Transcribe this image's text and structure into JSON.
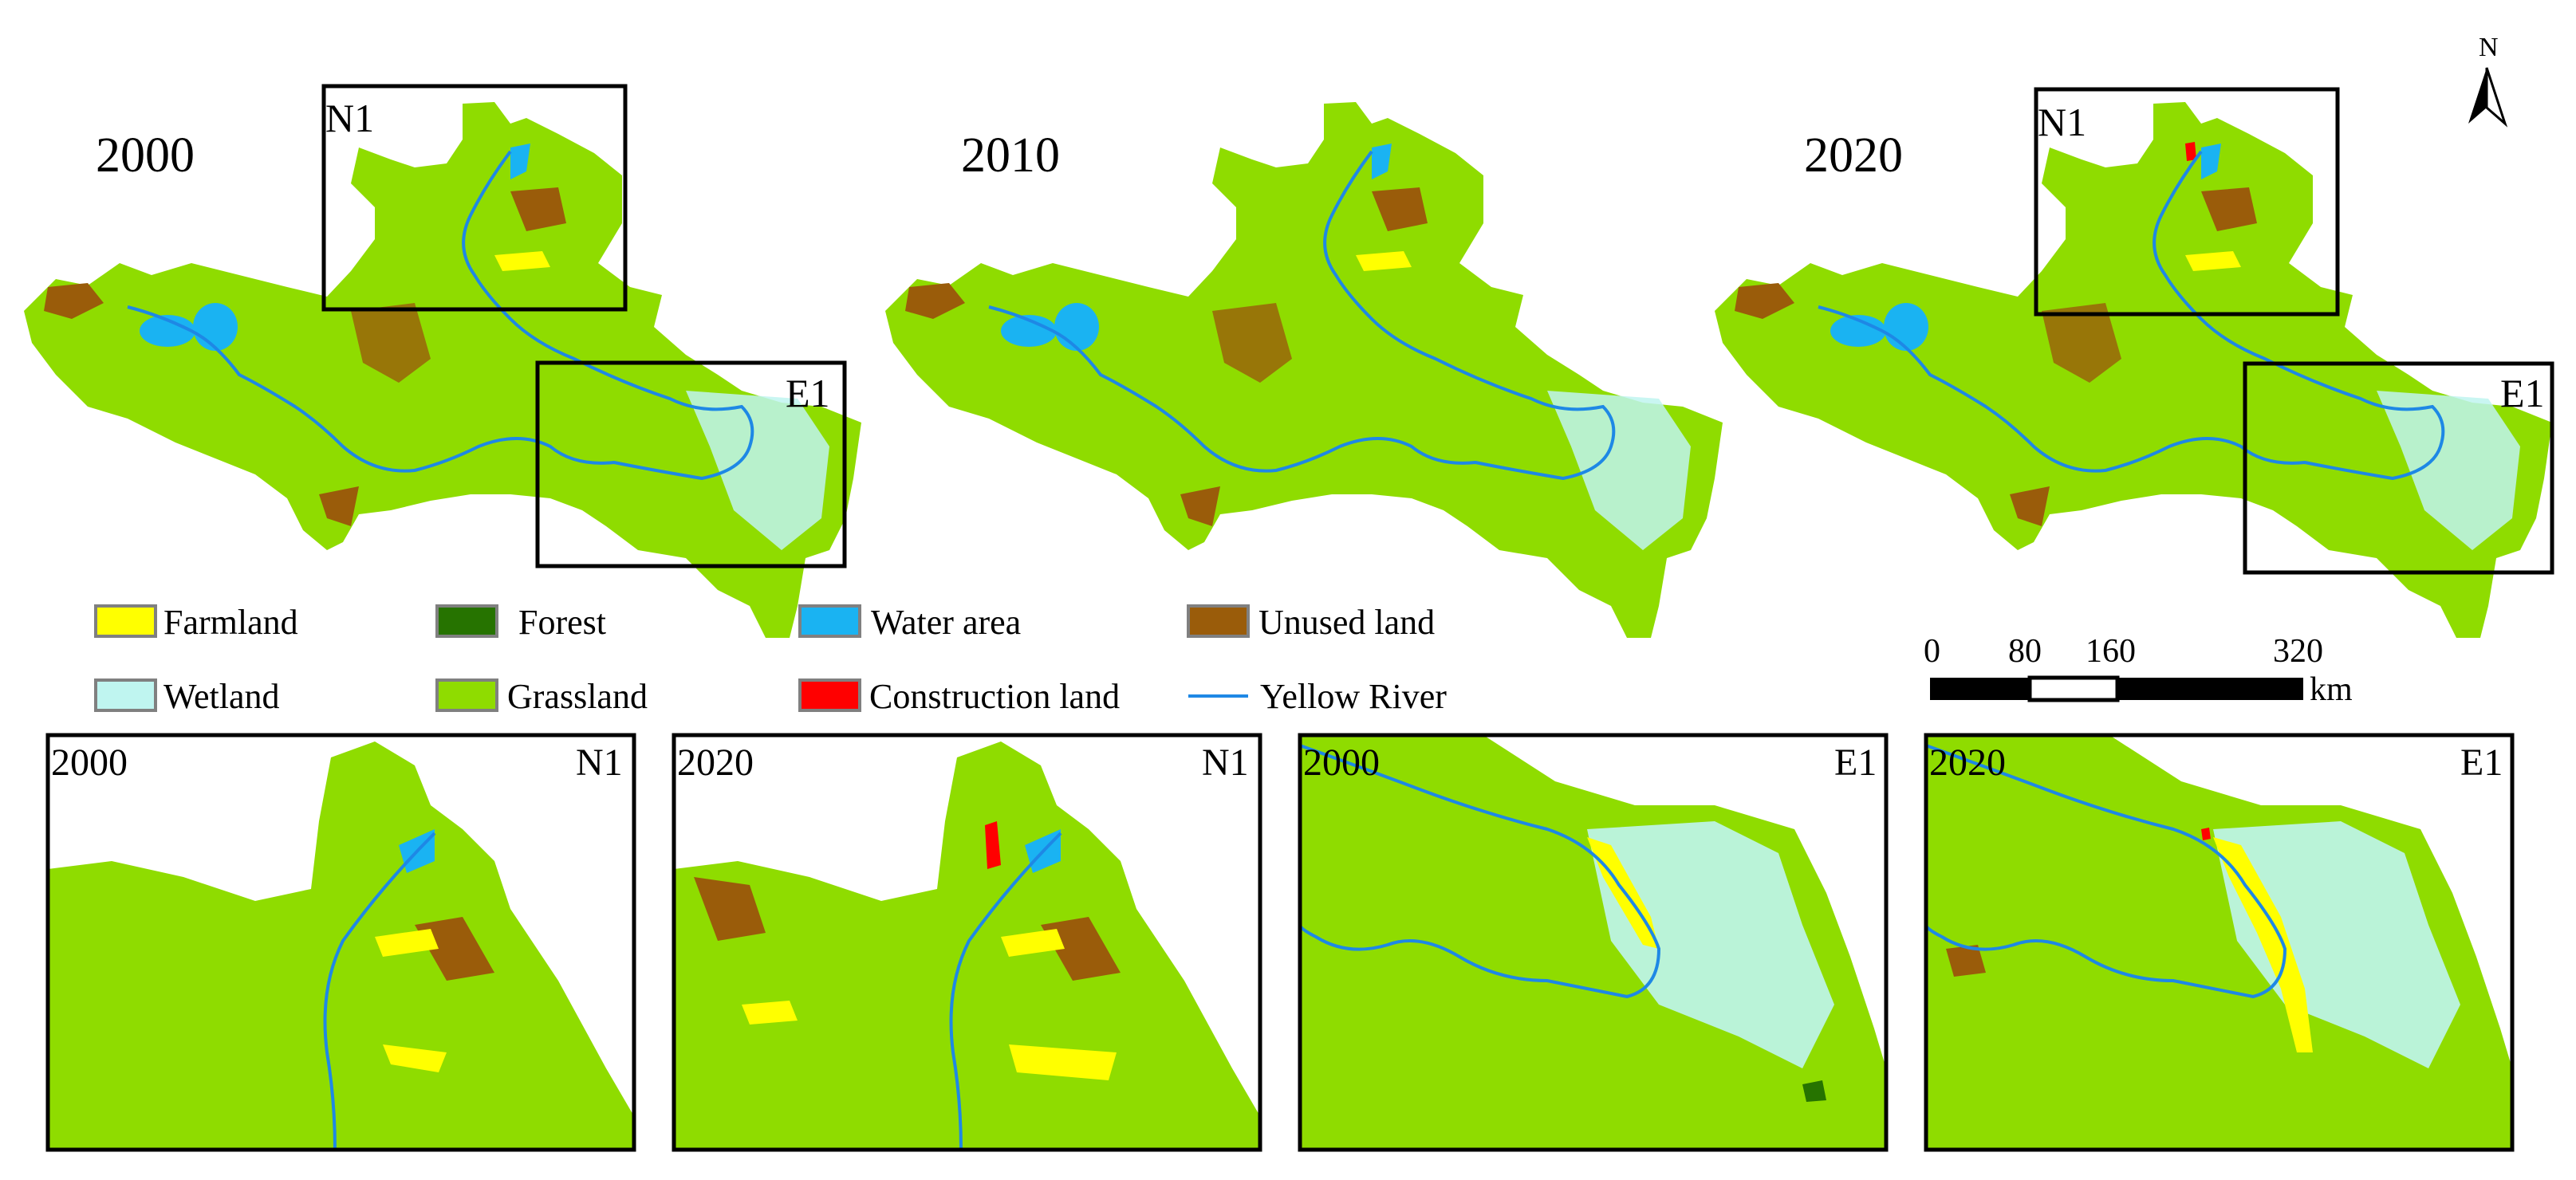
{
  "colors": {
    "farmland": "#ffff00",
    "forest": "#267300",
    "water": "#1ab3f2",
    "unused": "#9a5c0a",
    "wetland": "#bff5f0",
    "grassland": "#8fdc00",
    "construction": "#ff0000",
    "river": "#1e88e5"
  },
  "maps": {
    "year_2000": "2000",
    "year_2010": "2010",
    "year_2020": "2020"
  },
  "boxes": {
    "n1": "N1",
    "e1": "E1"
  },
  "north_arrow": {
    "label": "N",
    "icon": "north-arrow-icon"
  },
  "legend": {
    "farmland": "Farmland",
    "forest": "Forest",
    "water": "Water area",
    "unused": "Unused land",
    "wetland": "Wetland",
    "grassland": "Grassland",
    "construction": "Construction land",
    "river": "Yellow River"
  },
  "scale": {
    "t0": "0",
    "t1": "80",
    "t2": "160",
    "t3": "320",
    "unit": "km"
  },
  "insets": {
    "i1_year": "2000",
    "i1_label": "N1",
    "i2_year": "2020",
    "i2_label": "N1",
    "i3_year": "2000",
    "i3_label": "E1",
    "i4_year": "2020",
    "i4_label": "E1"
  }
}
